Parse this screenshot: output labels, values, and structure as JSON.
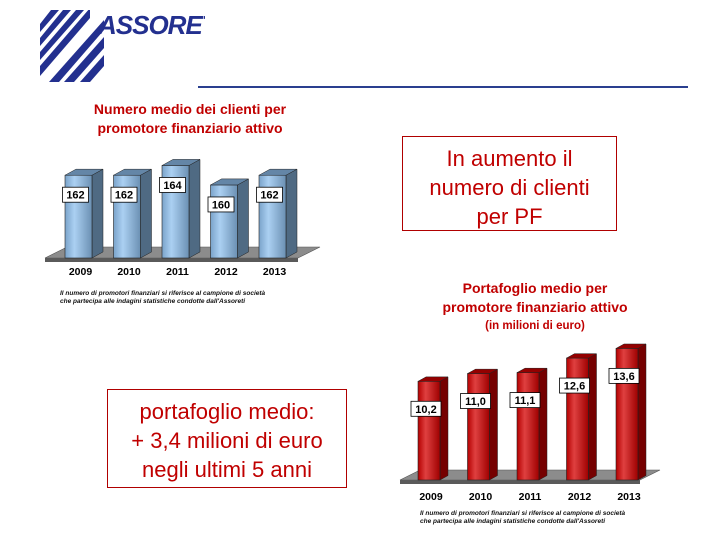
{
  "logo": {
    "text": "ASSORETI"
  },
  "charts": {
    "clients": {
      "title_line1": "Numero medio dei clienti per",
      "title_line2": "promotore finanziario attivo",
      "footnote_line1": "Il numero di promotori finanziari si riferisce al campione di società",
      "footnote_line2": "che partecipa alle indagini statistiche condotte dall'Assoreti"
    },
    "portfolio": {
      "title_line1": "Portafoglio medio per",
      "title_line2": "promotore finanziario attivo",
      "subtitle": "(in milioni di euro)",
      "footnote_line1": "Il numero di promotori finanziari si riferisce al campione di società",
      "footnote_line2": "che partecipa alle indagini statistiche condotte dall'Assoreti"
    }
  },
  "chart_data": [
    {
      "type": "bar",
      "title": "Numero medio dei clienti per promotore finanziario attivo",
      "categories": [
        "2009",
        "2010",
        "2011",
        "2012",
        "2013"
      ],
      "values": [
        162,
        162,
        164,
        160,
        162
      ],
      "value_labels": [
        "162",
        "162",
        "164",
        "160",
        "162"
      ],
      "ylim": [
        145,
        168
      ],
      "color": "#8fc0ee"
    },
    {
      "type": "bar",
      "title": "Portafoglio medio per promotore finanziario attivo",
      "subtitle": "(in milioni di euro)",
      "categories": [
        "2009",
        "2010",
        "2011",
        "2012",
        "2013"
      ],
      "values": [
        10.2,
        11.0,
        11.1,
        12.6,
        13.6
      ],
      "value_labels": [
        "10,2",
        "11,0",
        "11,1",
        "12,6",
        "13,6"
      ],
      "ylim": [
        0,
        15.5
      ],
      "color": "#d40000"
    }
  ],
  "callouts": {
    "increase_line1": "In aumento il",
    "increase_line2": "numero di clienti",
    "increase_line3": "per PF",
    "portfolio_line1": "portafoglio medio:",
    "portfolio_line2": "+ 3,4 milioni di euro",
    "portfolio_line3": "negli ultimi 5 anni"
  }
}
